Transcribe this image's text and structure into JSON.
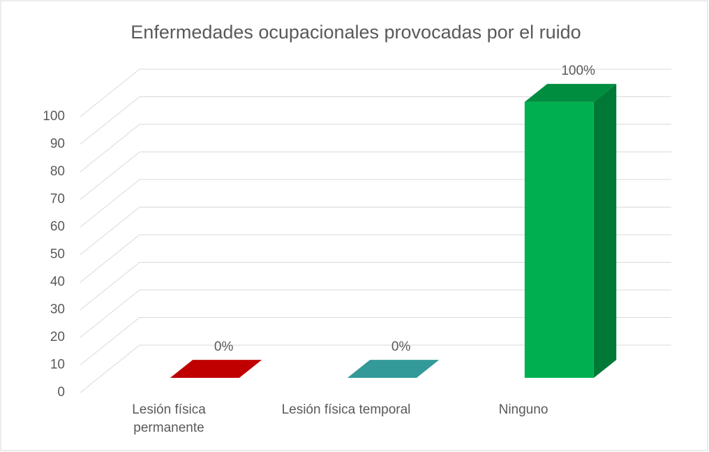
{
  "chart_data": {
    "type": "bar3d",
    "title": "Enfermedades ocupacionales provocadas por el ruido",
    "categories": [
      "Lesión física permanente",
      "Lesión física temporal",
      "Ninguno"
    ],
    "values": [
      0,
      0,
      100
    ],
    "value_labels": [
      "0%",
      "0%",
      "100%"
    ],
    "colors": [
      "#c00000",
      "#339999",
      "#00b050"
    ],
    "ylim": [
      0,
      100
    ],
    "yticks": [
      0,
      10,
      20,
      30,
      40,
      50,
      60,
      70,
      80,
      90,
      100
    ],
    "grid": true
  }
}
